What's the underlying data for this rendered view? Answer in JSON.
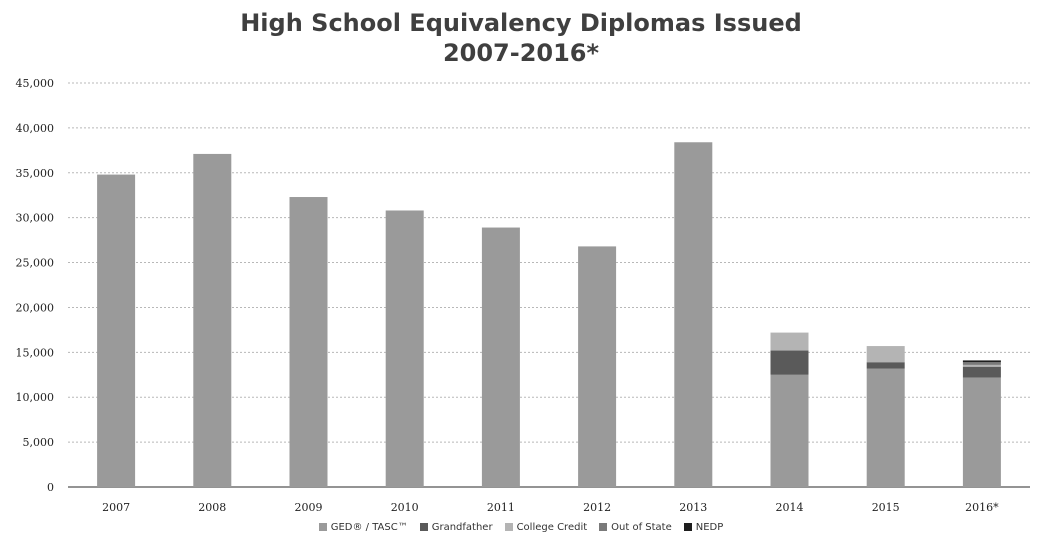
{
  "chart_data": {
    "type": "bar",
    "stacked": true,
    "title": "High School Equivalency Diplomas Issued",
    "subtitle": "2007-2016*",
    "categories": [
      "2007",
      "2008",
      "2009",
      "2010",
      "2011",
      "2012",
      "2013",
      "2014",
      "2015",
      "2016*"
    ],
    "series": [
      {
        "name": "GED® / TASC™",
        "color": "#9a9a9a",
        "values": [
          34800,
          37100,
          32300,
          30800,
          28900,
          26800,
          38400,
          12500,
          13200,
          12200
        ]
      },
      {
        "name": "Grandfather",
        "color": "#5a5a5a",
        "values": [
          0,
          0,
          0,
          0,
          0,
          0,
          0,
          2700,
          700,
          1200
        ]
      },
      {
        "name": "College Credit",
        "color": "#b4b4b4",
        "values": [
          0,
          0,
          0,
          0,
          0,
          0,
          0,
          2000,
          1800,
          200
        ]
      },
      {
        "name": "Out of State",
        "color": "#7a7a7a",
        "values": [
          0,
          0,
          0,
          0,
          0,
          0,
          0,
          0,
          0,
          300
        ]
      },
      {
        "name": "NEDP",
        "color": "#1e1e1e",
        "values": [
          0,
          0,
          0,
          0,
          0,
          0,
          0,
          0,
          0,
          200
        ]
      }
    ],
    "yticks": [
      "0",
      "5,000",
      "10,000",
      "15,000",
      "20,000",
      "25,000",
      "30,000",
      "35,000",
      "40,000",
      "45,000"
    ],
    "ylim": [
      0,
      45000
    ],
    "grid": true,
    "legend_position": "bottom"
  }
}
